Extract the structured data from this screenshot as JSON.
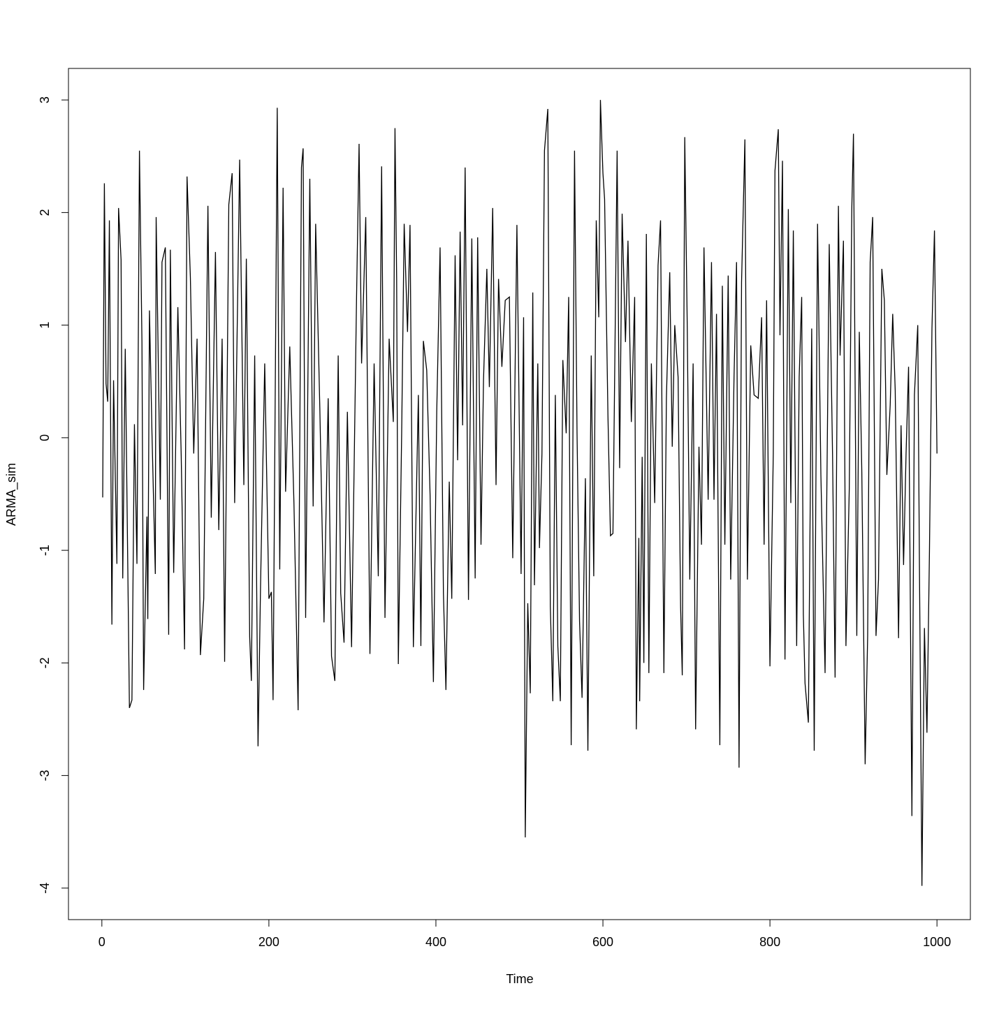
{
  "chart_data": {
    "type": "line",
    "xlabel": "Time",
    "ylabel": "ARMA_sim",
    "color": "#000000",
    "xlim": [
      -40,
      1040
    ],
    "ylim": [
      -4.28,
      3.28
    ],
    "xticks": [
      0,
      200,
      400,
      600,
      800,
      1000
    ],
    "yticks": [
      -4,
      -3,
      -2,
      -1,
      0,
      1,
      2,
      3
    ],
    "x": [
      1,
      3,
      5,
      7,
      9,
      12,
      14,
      18,
      20,
      23,
      25,
      28,
      33,
      36,
      39,
      42,
      45,
      48,
      50,
      54,
      55,
      57,
      60,
      64,
      65,
      70,
      72,
      76,
      80,
      82,
      86,
      91,
      95,
      99,
      102,
      106,
      110,
      114,
      118,
      122,
      127,
      131,
      136,
      140,
      144,
      147,
      152,
      156,
      159,
      165,
      170,
      173,
      177,
      179,
      183,
      187,
      190,
      195,
      200,
      203,
      205,
      210,
      213,
      217,
      220,
      225,
      230,
      235,
      239,
      241,
      244,
      249,
      253,
      256,
      261,
      266,
      271,
      275,
      279,
      283,
      286,
      290,
      294,
      299,
      305,
      308,
      311,
      316,
      321,
      326,
      331,
      335,
      339,
      344,
      349,
      351,
      353,
      355,
      359,
      362,
      366,
      369,
      373,
      379,
      382,
      385,
      389,
      393,
      397,
      401,
      405,
      409,
      412,
      416,
      419,
      423,
      426,
      429,
      432,
      435,
      439,
      443,
      447,
      450,
      454,
      457,
      461,
      464,
      468,
      472,
      475,
      479,
      483,
      488,
      492,
      497,
      502,
      505,
      507,
      510,
      513,
      516,
      518,
      522,
      524,
      527,
      530,
      534,
      537,
      540,
      543,
      546,
      549,
      552,
      556,
      559,
      562,
      566,
      569,
      572,
      575,
      579,
      582,
      586,
      589,
      592,
      595,
      597,
      600,
      602,
      606,
      609,
      612,
      617,
      620,
      623,
      627,
      630,
      634,
      638,
      640,
      643,
      644,
      647,
      649,
      652,
      655,
      658,
      662,
      666,
      669,
      673,
      676,
      680,
      683,
      686,
      690,
      693,
      695,
      698,
      701,
      704,
      708,
      711,
      715,
      718,
      721,
      726,
      730,
      733,
      736,
      740,
      743,
      746,
      750,
      753,
      757,
      760,
      763,
      766,
      770,
      773,
      777,
      781,
      786,
      790,
      793,
      796,
      800,
      804,
      806,
      810,
      812,
      815,
      818,
      822,
      825,
      828,
      832,
      835,
      838,
      840,
      842,
      846,
      850,
      853,
      857,
      861,
      866,
      871,
      875,
      878,
      882,
      884,
      888,
      891,
      895,
      898,
      900,
      904,
      907,
      910,
      914,
      917,
      920,
      923,
      927,
      930,
      934,
      937,
      940,
      944,
      947,
      950,
      954,
      957,
      960,
      963,
      966,
      970,
      973,
      977,
      979,
      982,
      985,
      988,
      991,
      994,
      997,
      1000
    ],
    "values": [
      -0.53,
      2.26,
      0.48,
      0.32,
      1.93,
      -1.66,
      0.51,
      -1.12,
      2.04,
      1.58,
      -1.25,
      0.79,
      -2.4,
      -2.33,
      0.12,
      -1.12,
      2.55,
      0.85,
      -2.24,
      -0.7,
      -1.61,
      1.13,
      0.04,
      -1.21,
      1.96,
      -0.55,
      1.56,
      1.69,
      -1.75,
      1.67,
      -1.2,
      1.16,
      -0.16,
      -1.88,
      2.32,
      1.42,
      -0.14,
      0.88,
      -1.93,
      -1.43,
      2.06,
      -0.71,
      1.65,
      -0.82,
      0.88,
      -1.99,
      2.07,
      2.35,
      -0.58,
      2.47,
      -0.42,
      1.59,
      -1.77,
      -2.16,
      0.73,
      -2.74,
      -1.32,
      0.66,
      -1.43,
      -1.37,
      -2.33,
      2.93,
      -1.17,
      2.22,
      -0.48,
      0.81,
      -0.58,
      -2.42,
      2.4,
      2.57,
      -1.6,
      2.3,
      -0.61,
      1.9,
      0.26,
      -1.64,
      0.35,
      -1.94,
      -2.16,
      0.73,
      -1.38,
      -1.82,
      0.23,
      -1.86,
      1.26,
      2.61,
      0.66,
      1.96,
      -1.92,
      0.66,
      -1.23,
      2.41,
      -1.6,
      0.88,
      0.14,
      2.75,
      1.41,
      -2.01,
      0.04,
      1.9,
      0.94,
      1.89,
      -1.86,
      0.38,
      -1.85,
      0.86,
      0.6,
      -0.5,
      -2.17,
      0.23,
      1.69,
      -1.38,
      -2.24,
      -0.39,
      -1.43,
      1.62,
      -0.2,
      1.83,
      0.11,
      2.4,
      -1.44,
      1.77,
      -1.25,
      1.78,
      -0.95,
      0.51,
      1.5,
      0.45,
      2.04,
      -0.42,
      1.41,
      0.63,
      1.22,
      1.25,
      -1.07,
      1.89,
      -1.21,
      1.07,
      -3.55,
      -1.47,
      -2.27,
      1.29,
      -1.31,
      0.66,
      -0.98,
      -0.14,
      2.55,
      2.92,
      -1.5,
      -2.34,
      0.38,
      -1.85,
      -2.34,
      0.69,
      0.04,
      1.25,
      -2.73,
      2.55,
      0.04,
      -1.63,
      -2.31,
      -0.36,
      -2.78,
      0.73,
      -1.23,
      1.93,
      1.07,
      3.0,
      2.35,
      2.12,
      0.2,
      -0.87,
      -0.85,
      2.55,
      -0.27,
      1.99,
      0.85,
      1.75,
      0.14,
      1.25,
      -2.59,
      -0.89,
      -2.34,
      -0.17,
      -2.0,
      1.81,
      -2.09,
      0.66,
      -0.58,
      1.53,
      1.93,
      -2.09,
      0.35,
      1.47,
      -0.08,
      1.0,
      0.54,
      -1.5,
      -2.11,
      2.67,
      0.97,
      -1.26,
      0.66,
      -2.59,
      -0.08,
      -0.95,
      1.69,
      -0.55,
      1.56,
      -0.55,
      1.1,
      -2.73,
      1.35,
      -0.95,
      1.44,
      -1.26,
      0.54,
      1.56,
      -2.93,
      1.38,
      2.65,
      -1.26,
      0.82,
      0.38,
      0.35,
      1.07,
      -0.95,
      1.22,
      -2.03,
      -0.14,
      2.37,
      2.74,
      0.91,
      2.46,
      -1.97,
      2.03,
      -0.58,
      1.84,
      -1.85,
      0.54,
      1.25,
      -1.57,
      -2.18,
      -2.53,
      0.97,
      -2.78,
      1.9,
      -0.33,
      -2.09,
      1.72,
      -0.17,
      -2.13,
      2.06,
      0.73,
      1.75,
      -1.85,
      -0.45,
      2.03,
      2.7,
      -1.76,
      0.94,
      -0.3,
      -2.9,
      -1.76,
      1.56,
      1.96,
      -1.76,
      -1.26,
      1.5,
      1.22,
      -0.33,
      0.29,
      1.1,
      0.42,
      -1.78,
      0.11,
      -1.13,
      -0.14,
      0.63,
      -3.36,
      0.38,
      1.0,
      -1.13,
      -3.98,
      -1.69,
      -2.62,
      -1.01,
      0.97,
      1.84,
      -0.14
    ]
  }
}
